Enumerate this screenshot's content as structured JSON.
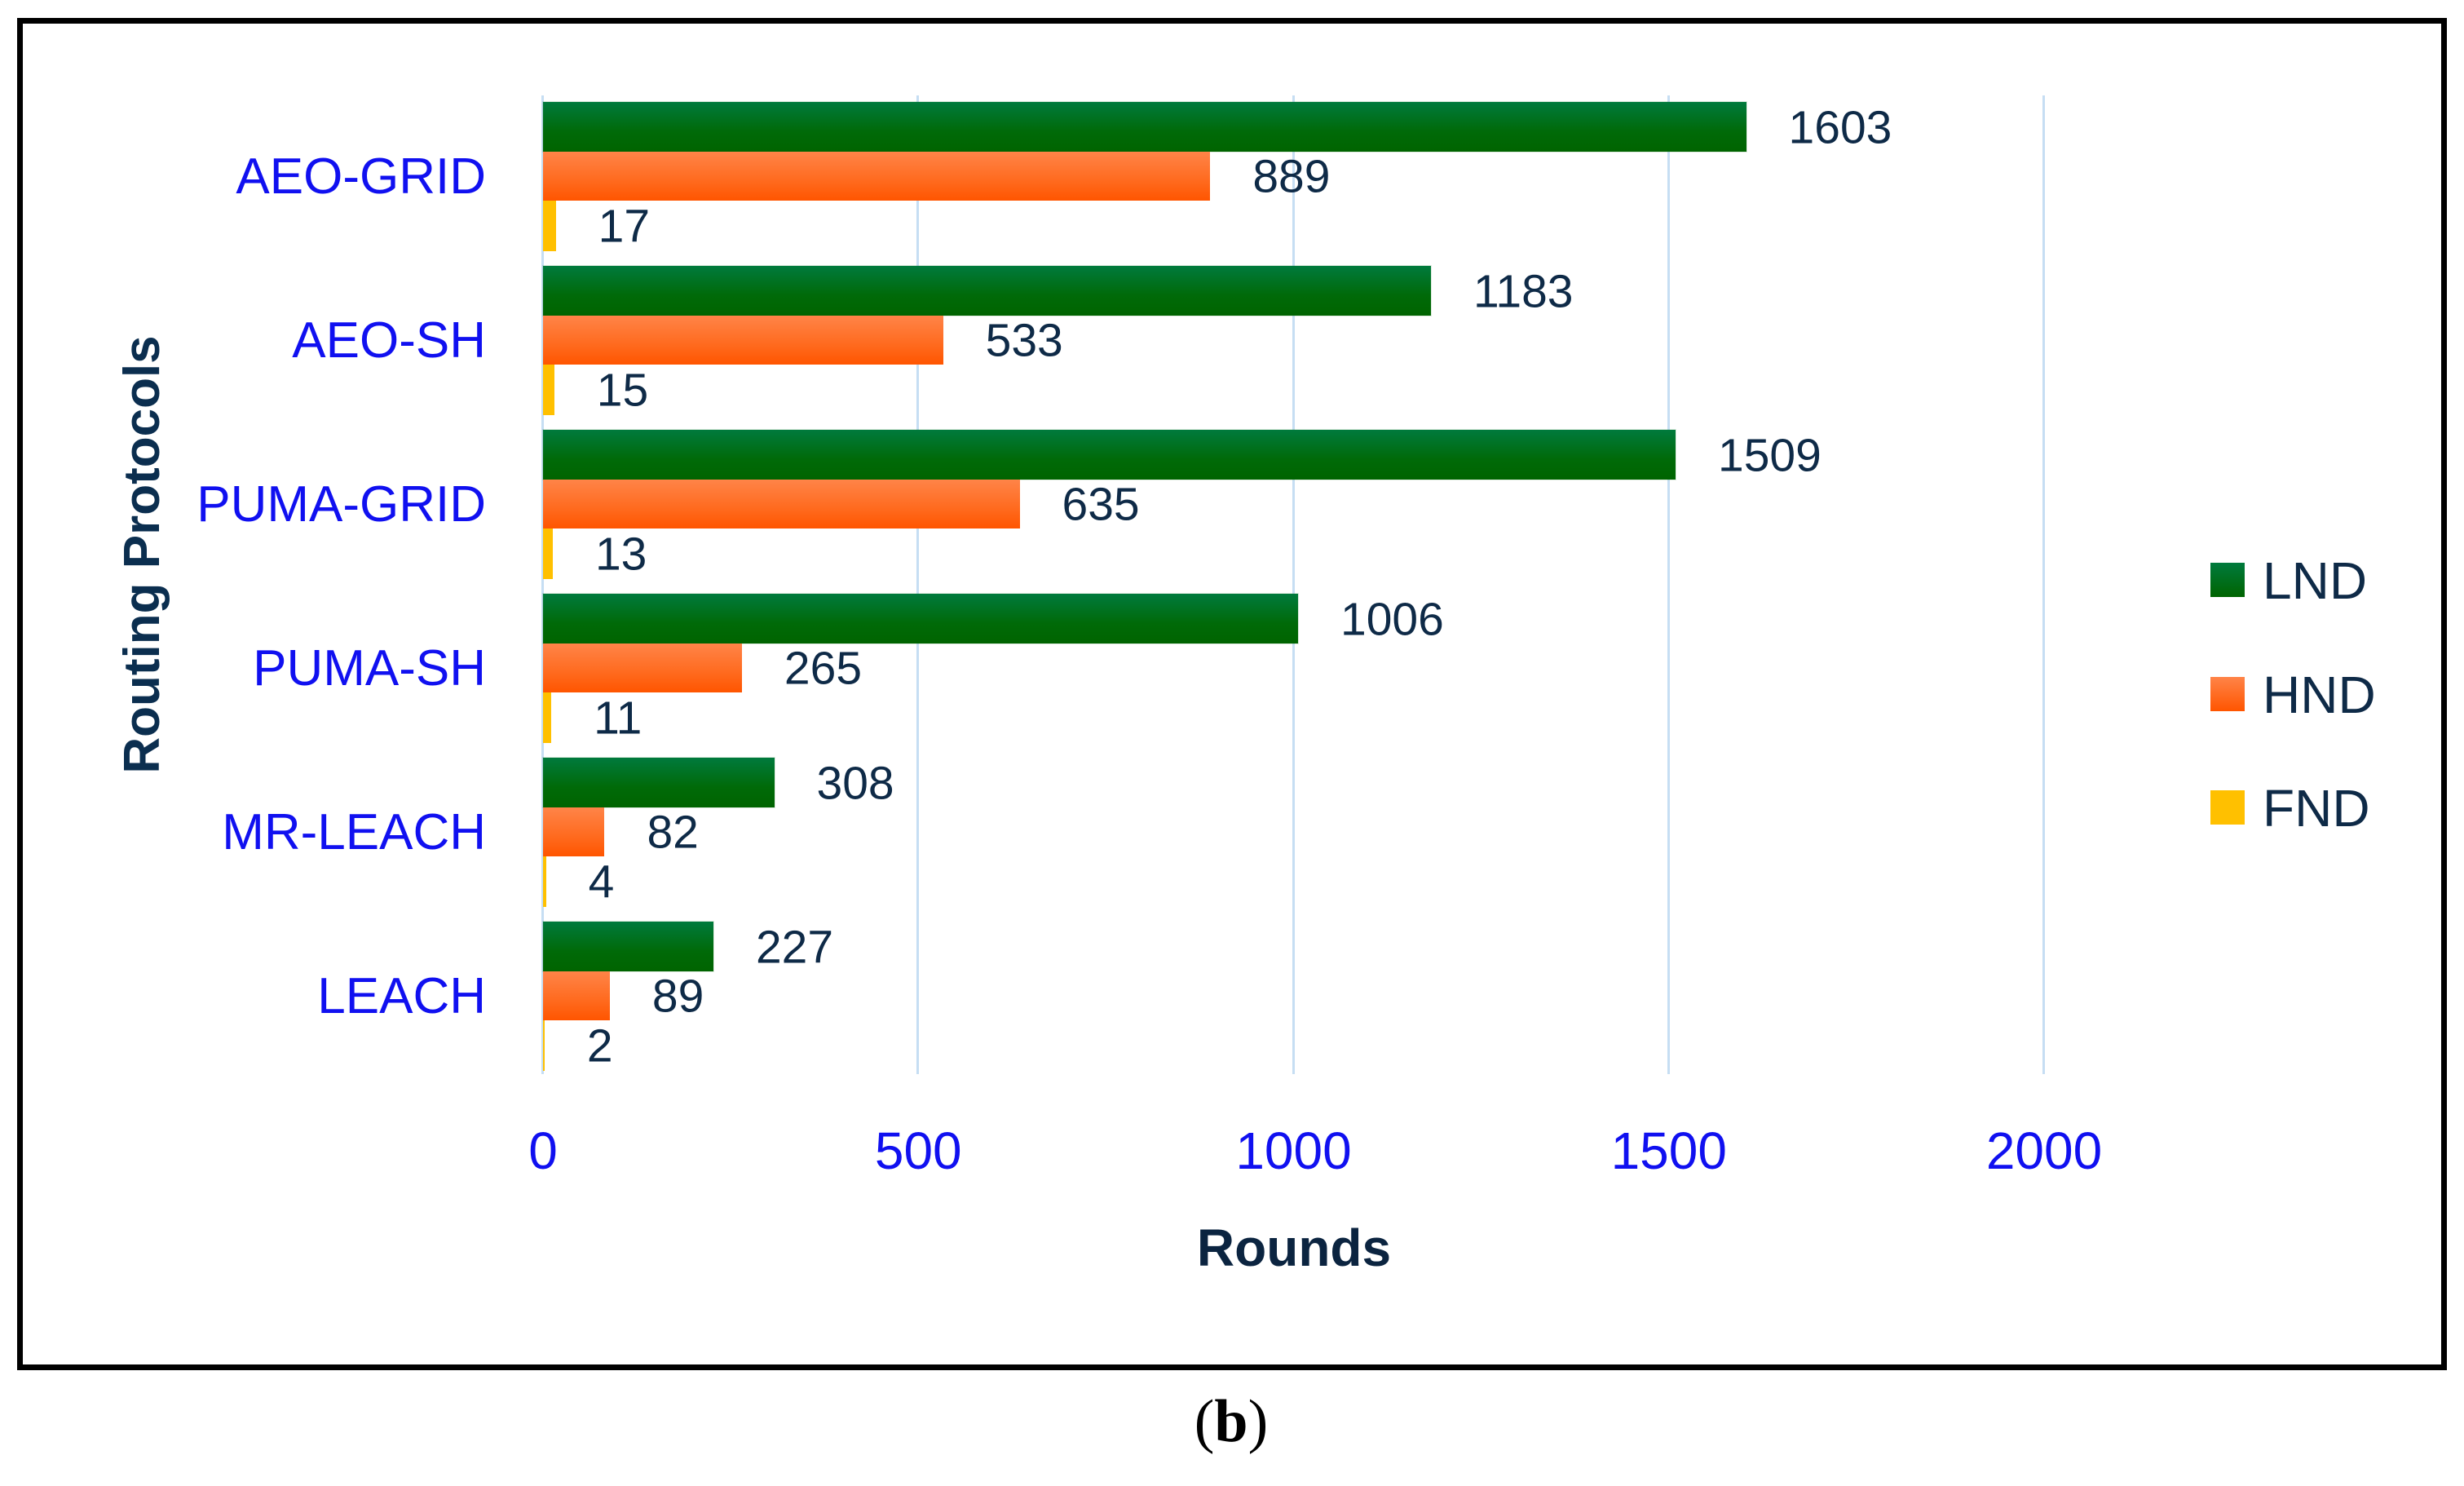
{
  "chart_data": {
    "type": "bar",
    "orientation": "horizontal",
    "title": "",
    "xlabel": "Rounds",
    "ylabel": "Routing Protocols",
    "xlim": [
      0,
      2000
    ],
    "xticks": [
      "0",
      "500",
      "1000",
      "1500",
      "2000"
    ],
    "grid": "vertical",
    "legend_position": "right",
    "categories": [
      "AEO-GRID",
      "AEO-SH",
      "PUMA-GRID",
      "PUMA-SH",
      "MR-LEACH",
      "LEACH"
    ],
    "series": [
      {
        "name": "LND",
        "color": "#006a08",
        "values": [
          1603,
          1183,
          1509,
          1006,
          308,
          227
        ]
      },
      {
        "name": "HND",
        "color": "#ff6a1e",
        "values": [
          889,
          533,
          635,
          265,
          82,
          89
        ]
      },
      {
        "name": "FND",
        "color": "#ffc000",
        "values": [
          17,
          15,
          13,
          11,
          4,
          2
        ]
      }
    ],
    "caption": "(b)"
  },
  "axes": {
    "x_title": "Rounds",
    "y_title": "Routing Protocols",
    "ticks": [
      "0",
      "500",
      "1000",
      "1500",
      "2000"
    ]
  },
  "legend": {
    "items": [
      {
        "label": "LND",
        "color": "#006a08"
      },
      {
        "label": "HND",
        "color": "#ff6a1e"
      },
      {
        "label": "FND",
        "color": "#ffc000"
      }
    ]
  },
  "caption": {
    "open": "(",
    "letter": "b",
    "close": ")"
  }
}
